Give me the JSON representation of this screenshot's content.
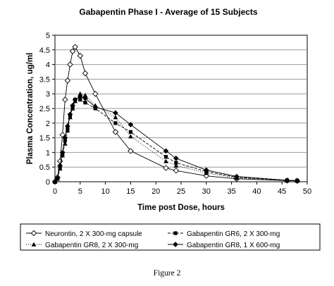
{
  "chart_data": {
    "type": "line",
    "title": "Gabapentin Phase I  - Average of 15 Subjects",
    "xlabel": "Time post Dose, hours",
    "ylabel": "Plasma Concentration, ug/ml",
    "xlim": [
      0,
      50
    ],
    "ylim": [
      0,
      5
    ],
    "x_ticks": [
      "0",
      "5",
      "10",
      "15",
      "20",
      "25",
      "30",
      "35",
      "40",
      "45",
      "50"
    ],
    "y_ticks": [
      "0",
      "0.5",
      "1",
      "1.5",
      "2",
      "2.5",
      "3",
      "3.5",
      "4",
      "4.5",
      "5"
    ],
    "grid": "horizontal",
    "legend_position": "bottom",
    "series": [
      {
        "name": "Neurontin, 2 X 300-mg capsule",
        "marker": "open-diamond",
        "x": [
          0,
          0.5,
          1,
          1.5,
          2,
          2.5,
          3,
          3.5,
          4,
          5,
          6,
          8,
          12,
          15,
          22,
          24,
          30,
          36,
          46,
          48
        ],
        "y": [
          0,
          0.15,
          0.7,
          1.6,
          2.8,
          3.45,
          4.0,
          4.45,
          4.6,
          4.3,
          3.7,
          3.0,
          1.7,
          1.05,
          0.47,
          0.38,
          0.2,
          0.1,
          0.04,
          0.03
        ]
      },
      {
        "name": "Gabapentin GR6, 2 X 300-mg",
        "marker": "filled-square",
        "x": [
          0,
          0.5,
          1,
          1.5,
          2,
          2.5,
          3,
          3.5,
          4,
          5,
          6,
          8,
          12,
          15,
          22,
          24,
          30,
          36,
          46,
          48
        ],
        "y": [
          0,
          0.1,
          0.5,
          0.95,
          1.4,
          1.8,
          2.25,
          2.55,
          2.8,
          2.8,
          2.7,
          2.5,
          2.0,
          1.7,
          0.85,
          0.65,
          0.35,
          0.15,
          0.05,
          0.04
        ]
      },
      {
        "name": "Gabapentin GR8, 2 X 300-mg",
        "marker": "filled-triangle",
        "x": [
          0,
          0.5,
          1,
          1.5,
          2,
          2.5,
          3,
          3.5,
          4,
          5,
          6,
          8,
          12,
          15,
          22,
          24,
          30,
          36,
          46,
          48
        ],
        "y": [
          0,
          0.1,
          0.45,
          0.9,
          1.3,
          1.75,
          2.2,
          2.5,
          2.75,
          3.0,
          2.95,
          2.6,
          2.2,
          1.55,
          0.7,
          0.55,
          0.3,
          0.13,
          0.04,
          0.03
        ]
      },
      {
        "name": "Gabapentin GR8, 1 X 600-mg",
        "marker": "filled-diamond",
        "x": [
          0,
          0.5,
          1,
          1.5,
          2,
          2.5,
          3,
          3.5,
          4,
          5,
          6,
          8,
          12,
          15,
          22,
          24,
          30,
          36,
          46,
          48
        ],
        "y": [
          0,
          0.12,
          0.55,
          1.0,
          1.5,
          1.9,
          2.3,
          2.6,
          2.8,
          2.9,
          2.85,
          2.55,
          2.35,
          1.95,
          1.05,
          0.8,
          0.4,
          0.18,
          0.05,
          0.04
        ]
      }
    ]
  },
  "figure_caption": "Figure 2"
}
